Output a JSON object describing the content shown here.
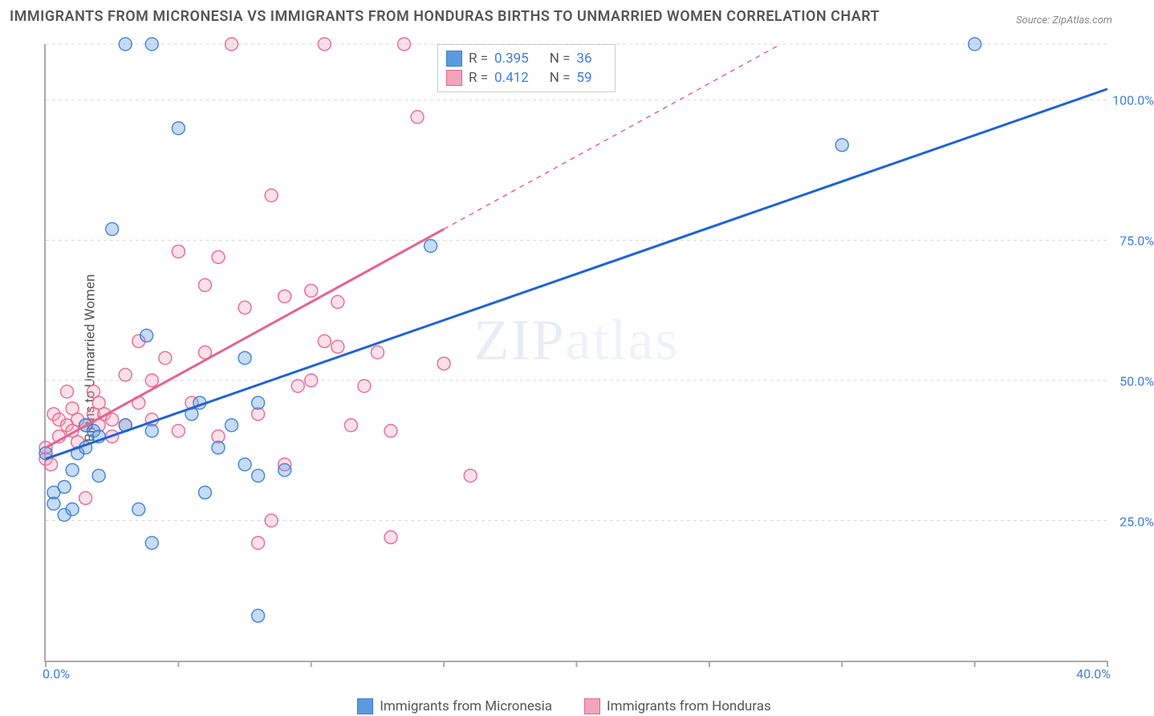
{
  "title": "IMMIGRANTS FROM MICRONESIA VS IMMIGRANTS FROM HONDURAS BIRTHS TO UNMARRIED WOMEN CORRELATION CHART",
  "source": "Source: ZipAtlas.com",
  "ylabel": "Births to Unmarried Women",
  "watermark_bold": "ZIP",
  "watermark_light": "atlas",
  "chart": {
    "type": "scatter",
    "background_color": "#ffffff",
    "grid_color": "#d8d8d8",
    "axis_color": "#aaaaaa",
    "xlim": [
      0,
      40
    ],
    "ylim": [
      0,
      110
    ],
    "x_ticks": [
      0,
      5,
      10,
      15,
      20,
      25,
      30,
      35,
      40
    ],
    "x_tick_labels": {
      "0": "0.0%",
      "40": "40.0%"
    },
    "y_gridlines": [
      25,
      50,
      75,
      100,
      110
    ],
    "y_tick_labels": {
      "25": "25.0%",
      "50": "50.0%",
      "75": "75.0%",
      "100": "100.0%"
    },
    "marker_radius": 8,
    "marker_fill_opacity": 0.35,
    "marker_stroke_opacity": 0.9,
    "trend_line_width": 3,
    "series": [
      {
        "name": "Immigrants from Micronesia",
        "color": "#5c9ae0",
        "stroke": "#3b7dd8",
        "trend_color": "#1f63d6",
        "r_value": "0.395",
        "n_value": "36",
        "trend_solid": {
          "x1": 0,
          "y1": 36,
          "x2": 40,
          "y2": 102
        },
        "points": [
          [
            0.0,
            37
          ],
          [
            0.3,
            30
          ],
          [
            0.3,
            28
          ],
          [
            0.7,
            31
          ],
          [
            0.7,
            26
          ],
          [
            1.0,
            27
          ],
          [
            1.0,
            34
          ],
          [
            1.2,
            37
          ],
          [
            1.5,
            38
          ],
          [
            1.5,
            42
          ],
          [
            1.8,
            41
          ],
          [
            2.0,
            33
          ],
          [
            2.0,
            40
          ],
          [
            2.5,
            77
          ],
          [
            3.0,
            110
          ],
          [
            3.0,
            42
          ],
          [
            3.5,
            27
          ],
          [
            3.8,
            58
          ],
          [
            4.0,
            21
          ],
          [
            4.0,
            41
          ],
          [
            4.0,
            110
          ],
          [
            5.0,
            95
          ],
          [
            5.5,
            44
          ],
          [
            5.8,
            46
          ],
          [
            6.0,
            30
          ],
          [
            6.5,
            38
          ],
          [
            7.0,
            42
          ],
          [
            7.5,
            54
          ],
          [
            7.5,
            35
          ],
          [
            8.0,
            46
          ],
          [
            8.0,
            8
          ],
          [
            8.0,
            33
          ],
          [
            9.0,
            34
          ],
          [
            14.5,
            74
          ],
          [
            30.0,
            92
          ],
          [
            35.0,
            110
          ]
        ]
      },
      {
        "name": "Immigrants from Honduras",
        "color": "#f0a5bb",
        "stroke": "#e5638f",
        "trend_color": "#e5638f",
        "r_value": "0.412",
        "n_value": "59",
        "trend_solid": {
          "x1": 0,
          "y1": 38,
          "x2": 15,
          "y2": 77
        },
        "trend_dashed": {
          "x1": 15,
          "y1": 77,
          "x2": 40,
          "y2": 142
        },
        "points": [
          [
            0.0,
            36
          ],
          [
            0.0,
            38
          ],
          [
            0.2,
            35
          ],
          [
            0.3,
            44
          ],
          [
            0.5,
            40
          ],
          [
            0.5,
            43
          ],
          [
            0.8,
            48
          ],
          [
            0.8,
            42
          ],
          [
            1.0,
            45
          ],
          [
            1.0,
            41
          ],
          [
            1.2,
            43
          ],
          [
            1.2,
            39
          ],
          [
            1.5,
            29
          ],
          [
            1.5,
            42
          ],
          [
            1.8,
            44
          ],
          [
            1.8,
            48
          ],
          [
            2.0,
            46
          ],
          [
            2.0,
            42
          ],
          [
            2.2,
            44
          ],
          [
            2.5,
            40
          ],
          [
            2.5,
            43
          ],
          [
            3.0,
            51
          ],
          [
            3.0,
            42
          ],
          [
            3.5,
            46
          ],
          [
            3.5,
            57
          ],
          [
            4.0,
            43
          ],
          [
            4.0,
            50
          ],
          [
            4.5,
            54
          ],
          [
            5.0,
            41
          ],
          [
            5.0,
            73
          ],
          [
            5.5,
            46
          ],
          [
            6.0,
            67
          ],
          [
            6.0,
            55
          ],
          [
            6.5,
            40
          ],
          [
            6.5,
            72
          ],
          [
            7.0,
            110
          ],
          [
            7.5,
            63
          ],
          [
            8.0,
            21
          ],
          [
            8.0,
            44
          ],
          [
            8.5,
            25
          ],
          [
            8.5,
            83
          ],
          [
            9.0,
            35
          ],
          [
            9.0,
            65
          ],
          [
            9.5,
            49
          ],
          [
            10.0,
            66
          ],
          [
            10.0,
            50
          ],
          [
            10.5,
            57
          ],
          [
            10.5,
            110
          ],
          [
            11.0,
            64
          ],
          [
            11.0,
            56
          ],
          [
            11.5,
            42
          ],
          [
            12.0,
            49
          ],
          [
            12.5,
            55
          ],
          [
            13.0,
            41
          ],
          [
            13.0,
            22
          ],
          [
            13.5,
            110
          ],
          [
            14.0,
            97
          ],
          [
            15.0,
            53
          ],
          [
            16.0,
            33
          ]
        ]
      }
    ]
  },
  "legend": {
    "r_label": "R =",
    "n_label": "N ="
  },
  "bottom_legend": {
    "series1_label": "Immigrants from Micronesia",
    "series2_label": "Immigrants from Honduras"
  }
}
